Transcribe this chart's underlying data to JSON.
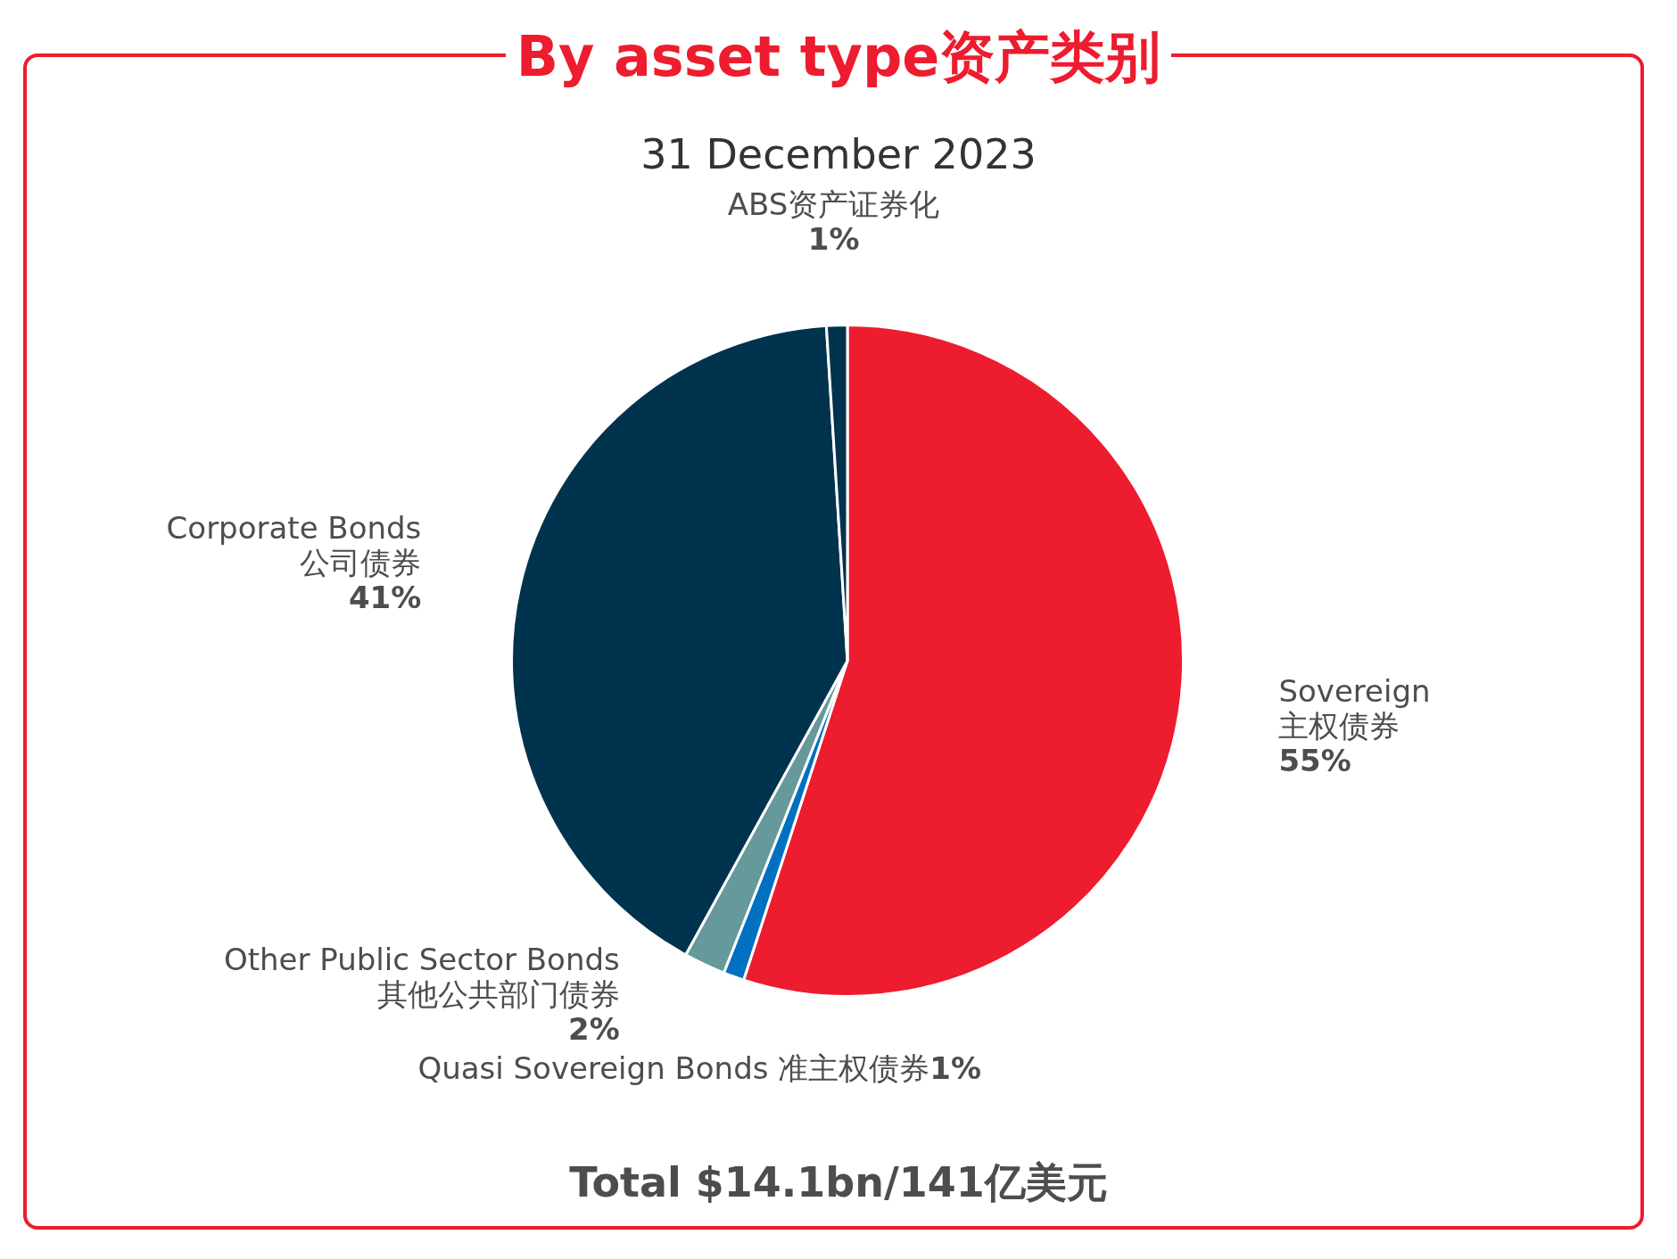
{
  "chart_data": {
    "type": "pie",
    "title": "By asset type资产类别",
    "subtitle": "31 December 2023",
    "categories": [
      "Sovereign\n主权债券",
      "Quasi Sovereign Bonds 准主权债券",
      "Other Public Sector Bonds\n其他公共部门债券",
      "Corporate Bonds\n公司债券",
      "ABS资产证券化"
    ],
    "values": [
      55,
      1,
      2,
      41,
      1
    ],
    "value_labels": [
      "55%",
      "1%",
      "2%",
      "41%",
      "1%"
    ],
    "colors": [
      "#ed1c2e",
      "#0070c0",
      "#669999",
      "#00334e",
      "#00334e"
    ],
    "legend": false,
    "annotations": [
      "Total $14.1bn/141亿美元"
    ]
  }
}
